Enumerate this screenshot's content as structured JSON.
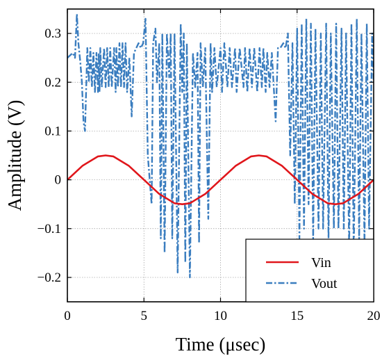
{
  "chart_data": {
    "type": "line",
    "title": "",
    "xlabel": "Time (μsec)",
    "ylabel": "Amplitude (V)",
    "xlim": [
      0,
      20
    ],
    "ylim": [
      -0.25,
      0.35
    ],
    "x_ticks": [
      0,
      5,
      10,
      15,
      20
    ],
    "x_tick_labels": [
      "0",
      "5",
      "10",
      "15",
      "20"
    ],
    "y_ticks": [
      -0.2,
      -0.1,
      0,
      0.1,
      0.2,
      0.3
    ],
    "y_tick_labels": [
      "−0.2",
      "−0.1",
      "0",
      "0.1",
      "0.2",
      "0.3"
    ],
    "grid": true,
    "legend_position": "lower-right",
    "series": [
      {
        "name": "Vin",
        "color": "#e0161b",
        "style": "solid",
        "x": [
          0,
          1,
          2,
          2.5,
          3,
          4,
          5,
          6,
          7,
          7.5,
          8,
          9,
          10,
          11,
          12,
          12.5,
          13,
          14,
          15,
          16,
          17,
          17.5,
          18,
          19,
          20
        ],
        "values": [
          0,
          0.029,
          0.048,
          0.05,
          0.048,
          0.029,
          0,
          -0.029,
          -0.048,
          -0.05,
          -0.048,
          -0.029,
          0,
          0.029,
          0.048,
          0.05,
          0.048,
          0.029,
          0,
          -0.029,
          -0.048,
          -0.05,
          -0.048,
          -0.029,
          0
        ]
      },
      {
        "name": "Vout",
        "color": "#3a7dbf",
        "style": "dashdot",
        "x": [
          0,
          0.35,
          0.5,
          0.62,
          0.72,
          0.85,
          0.95,
          1.05,
          1.15,
          1.3,
          1.4,
          1.5,
          1.6,
          1.7,
          1.8,
          1.9,
          2.0,
          2.05,
          2.1,
          2.15,
          2.25,
          2.4,
          2.5,
          2.6,
          2.7,
          2.8,
          2.9,
          3.05,
          3.15,
          3.2,
          3.3,
          3.4,
          3.5,
          3.6,
          3.7,
          3.8,
          3.9,
          4.05,
          4.2,
          4.35,
          4.5,
          4.65,
          4.8,
          4.95,
          5.1,
          5.25,
          5.5,
          5.6,
          5.75,
          5.85,
          6.0,
          6.1,
          6.2,
          6.35,
          6.5,
          6.65,
          6.75,
          6.85,
          7.0,
          7.2,
          7.4,
          7.5,
          7.6,
          7.7,
          7.8,
          8.0,
          8.2,
          8.35,
          8.5,
          8.6,
          8.7,
          8.85,
          9.0,
          9.2,
          9.35,
          9.45,
          9.6,
          9.75,
          10.0,
          10.1,
          10.25,
          10.45,
          10.6,
          10.75,
          10.95,
          11.05,
          11.25,
          11.5,
          11.6,
          11.75,
          11.9,
          12.05,
          12.2,
          12.4,
          12.55,
          12.7,
          12.8,
          12.95,
          13.05,
          13.2,
          13.35,
          13.6,
          13.75,
          13.9,
          14.1,
          14.25,
          14.4,
          14.55,
          14.7,
          14.85,
          15.0,
          15.15,
          15.3,
          15.45,
          15.6,
          15.75,
          15.9,
          16.05,
          16.2,
          16.4,
          16.55,
          16.7,
          16.9,
          17.05,
          17.2,
          17.4,
          17.55,
          17.7,
          17.9,
          18.05,
          18.2,
          18.4,
          18.55,
          18.7,
          18.9,
          19.05,
          19.2,
          19.4,
          19.55,
          19.7,
          19.9,
          20.0
        ],
        "values": [
          0.25,
          0.26,
          0.25,
          0.34,
          0.28,
          0.24,
          0.2,
          0.12,
          0.1,
          0.27,
          0.2,
          0.27,
          0.19,
          0.26,
          0.18,
          0.26,
          0.18,
          0.26,
          0.18,
          0.27,
          0.19,
          0.27,
          0.19,
          0.27,
          0.19,
          0.27,
          0.19,
          0.27,
          0.18,
          0.27,
          0.19,
          0.28,
          0.19,
          0.28,
          0.19,
          0.28,
          0.18,
          0.25,
          0.13,
          0.26,
          0.27,
          0.28,
          0.27,
          0.28,
          0.33,
          0.05,
          -0.05,
          0.28,
          0.31,
          0.2,
          0.28,
          -0.12,
          0.3,
          -0.15,
          0.3,
          0.21,
          0.3,
          -0.12,
          0.3,
          -0.19,
          0.32,
          0.18,
          0.3,
          -0.17,
          0.28,
          -0.2,
          0.26,
          0.19,
          0.26,
          -0.13,
          0.28,
          0.19,
          0.27,
          -0.08,
          0.28,
          0.18,
          0.27,
          0.19,
          0.27,
          0.18,
          0.28,
          0.19,
          0.27,
          0.19,
          0.27,
          0.18,
          0.27,
          0.19,
          0.27,
          0.18,
          0.27,
          0.19,
          0.27,
          0.18,
          0.27,
          0.19,
          0.27,
          0.18,
          0.26,
          0.19,
          0.26,
          0.12,
          0.27,
          0.27,
          0.28,
          0.27,
          0.3,
          0.05,
          0.28,
          -0.05,
          0.31,
          -0.12,
          0.32,
          -0.1,
          0.33,
          -0.05,
          0.32,
          -0.12,
          0.31,
          -0.1,
          0.3,
          -0.1,
          0.32,
          -0.12,
          0.3,
          -0.1,
          0.32,
          -0.1,
          0.31,
          -0.1,
          0.3,
          -0.14,
          0.32,
          -0.15,
          0.33,
          -0.12,
          0.3,
          -0.13,
          0.32,
          -0.1,
          0.3,
          0.2
        ]
      }
    ]
  }
}
